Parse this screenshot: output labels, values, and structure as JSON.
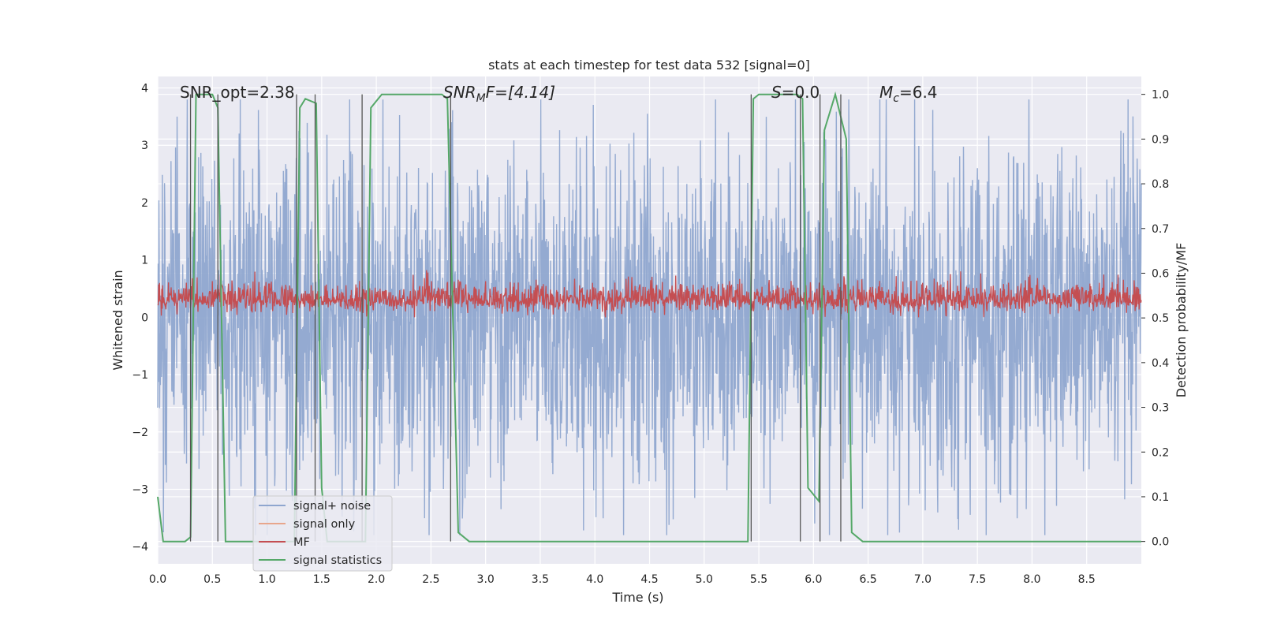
{
  "chart_data": {
    "type": "line",
    "title": "stats at each timestep for test data 532 [signal=0]",
    "xlabel": "Time (s)",
    "ylabel_left": "Whitened strain",
    "ylabel_right": "Detection probability/MF",
    "xlim": [
      0,
      9.0
    ],
    "ylim_left": [
      -4.3,
      4.2
    ],
    "ylim_right": [
      -0.05,
      1.04
    ],
    "grid": true,
    "legend_position": "lower-left",
    "x_ticks": [
      "0.0",
      "0.5",
      "1.0",
      "1.5",
      "2.0",
      "2.5",
      "3.0",
      "3.5",
      "4.0",
      "4.5",
      "5.0",
      "5.5",
      "6.0",
      "6.5",
      "7.0",
      "7.5",
      "8.0",
      "8.5"
    ],
    "y_left_ticks": [
      "−4",
      "−3",
      "−2",
      "−1",
      "0",
      "1",
      "2",
      "3",
      "4"
    ],
    "y_right_ticks": [
      "0.0",
      "0.1",
      "0.2",
      "0.3",
      "0.4",
      "0.5",
      "0.6",
      "0.7",
      "0.8",
      "0.9",
      "1.0"
    ],
    "annotations": {
      "snr_opt": "SNR_opt=2.38",
      "snr_mf_base": "SNR",
      "snr_mf_sub": "M",
      "snr_mf_rest": "F=[4.14]",
      "s_it": "S",
      "s_rest": "=0.0",
      "mc_base": "M",
      "mc_sub": "c",
      "mc_rest": "=6.4"
    },
    "series": [
      {
        "name": "signal+ noise",
        "color": "#8fa6cf",
        "axis": "left",
        "description_x_range": [
          0,
          9.0
        ],
        "envelope": {
          "typical_amplitude": 1.7,
          "peak_amplitude": 3.8
        }
      },
      {
        "name": "signal only",
        "color": "#e8a68c",
        "axis": "left"
      },
      {
        "name": "MF",
        "color": "#c44e52",
        "axis": "left",
        "baseline": 0.3,
        "range": [
          0.0,
          1.0
        ]
      },
      {
        "name": "signal statistics",
        "color": "#55a868",
        "axis": "right",
        "x": [
          0.0,
          0.05,
          0.25,
          0.3,
          0.35,
          0.5,
          0.55,
          0.62,
          0.7,
          1.25,
          1.3,
          1.35,
          1.45,
          1.5,
          1.55,
          1.9,
          1.95,
          2.05,
          2.6,
          2.65,
          2.75,
          2.85,
          3.0,
          5.4,
          5.45,
          5.5,
          5.85,
          5.9,
          5.95,
          6.05,
          6.1,
          6.2,
          6.3,
          6.35,
          6.45,
          9.0
        ],
        "values": [
          0.1,
          0.0,
          0.0,
          0.01,
          1.0,
          1.0,
          0.97,
          0.0,
          0.0,
          0.0,
          0.97,
          0.99,
          0.98,
          0.12,
          0.0,
          0.0,
          0.97,
          1.0,
          1.0,
          0.99,
          0.02,
          0.0,
          0.0,
          0.0,
          0.99,
          1.0,
          1.0,
          0.99,
          0.12,
          0.09,
          0.92,
          1.0,
          0.9,
          0.02,
          0.0,
          0.0
        ]
      }
    ],
    "vertical_markers_x": [
      0.3,
      0.55,
      1.27,
      1.44,
      1.87,
      2.68,
      5.43,
      5.88,
      6.06,
      6.25
    ]
  }
}
